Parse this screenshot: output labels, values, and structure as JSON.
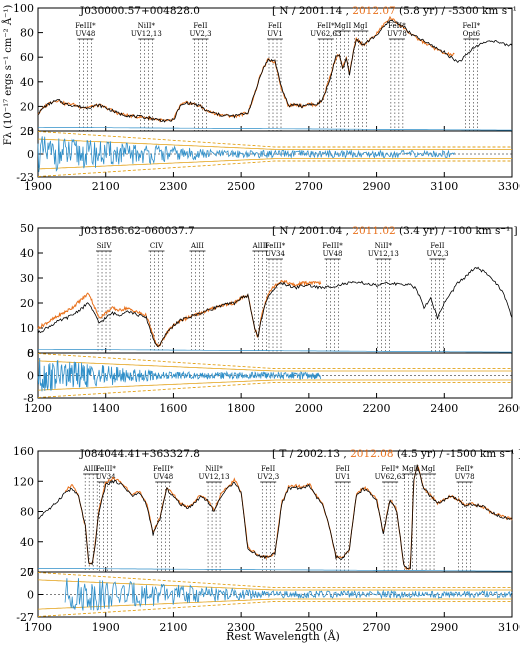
{
  "figure": {
    "xlabel": "Rest Wavelength (Å)",
    "ylabel_main": "Fλ (10⁻¹⁷ ergs s⁻¹ cm⁻² Å⁻¹)",
    "colors": {
      "early": "#000000",
      "late": "#e8711c",
      "residual": "#2f8fc9",
      "envelope": "#e3a21a",
      "axis": "#000000"
    }
  },
  "chart_data": [
    {
      "type": "line",
      "object": "J030000.57+004828.0",
      "header": {
        "prefix": "[ N / 2001.14 ,",
        "late_epoch": "2012.07",
        "suffix": "(5.8 yr) / -5300 km s⁻¹ ]"
      },
      "xlim": [
        1900,
        3300
      ],
      "ylim": [
        0,
        100
      ],
      "xticks": [
        1900,
        2100,
        2300,
        2500,
        2700,
        2900,
        3100,
        3300
      ],
      "yticks": [
        0,
        20,
        40,
        60,
        80,
        100
      ],
      "resid_lim": [
        -23,
        23
      ],
      "resid_ticks": [
        -23,
        0,
        23
      ],
      "late_range": [
        1900,
        3130
      ],
      "lines": [
        {
          "label": "FeIII* UV48",
          "x": [
            2040
          ]
        },
        {
          "label": "NiII* UV12,13",
          "x": [
            2220
          ]
        },
        {
          "label": "FeII UV2,3",
          "x": [
            2380
          ]
        },
        {
          "label": "FeII UV1",
          "x": [
            2600
          ]
        },
        {
          "label": "FeII* UV62,63",
          "x": [
            2750
          ]
        },
        {
          "label": "MgII",
          "x": [
            2800
          ]
        },
        {
          "label": "MgI",
          "x": [
            2852
          ]
        },
        {
          "label": "FeII* UV78",
          "x": [
            2960
          ]
        },
        {
          "label": "FeII* Opt6",
          "x": [
            3180
          ]
        }
      ],
      "series": [
        {
          "name": "2001.14",
          "x": [
            1900,
            1920,
            1940,
            1960,
            1980,
            2000,
            2020,
            2040,
            2060,
            2080,
            2100,
            2140,
            2180,
            2220,
            2260,
            2280,
            2300,
            2320,
            2340,
            2360,
            2380,
            2400,
            2440,
            2480,
            2520,
            2540,
            2560,
            2580,
            2600,
            2620,
            2640,
            2660,
            2680,
            2700,
            2720,
            2740,
            2760,
            2780,
            2790,
            2800,
            2810,
            2820,
            2830,
            2840,
            2860,
            2880,
            2900,
            2920,
            2940,
            2960,
            2980,
            3000,
            3020,
            3040,
            3060,
            3080,
            3100,
            3120,
            3140,
            3160,
            3180,
            3200,
            3220,
            3240,
            3260,
            3280,
            3300
          ],
          "y": [
            14,
            20,
            23,
            25,
            22,
            21,
            20,
            19,
            20,
            21,
            19,
            14,
            12,
            11,
            9,
            8,
            9,
            20,
            23,
            22,
            20,
            16,
            13,
            12,
            15,
            30,
            48,
            58,
            57,
            35,
            20,
            22,
            20,
            22,
            21,
            25,
            40,
            60,
            62,
            50,
            60,
            45,
            62,
            75,
            70,
            74,
            78,
            84,
            90,
            88,
            85,
            79,
            76,
            73,
            70,
            67,
            64,
            60,
            56,
            60,
            66,
            70,
            72,
            74,
            72,
            70,
            70
          ]
        },
        {
          "name": "2012.07",
          "x": [
            1900,
            1920,
            1940,
            1960,
            1980,
            2000,
            2020,
            2040,
            2060,
            2080,
            2100,
            2140,
            2180,
            2220,
            2260,
            2280,
            2300,
            2320,
            2340,
            2360,
            2380,
            2400,
            2440,
            2480,
            2520,
            2540,
            2560,
            2580,
            2600,
            2620,
            2640,
            2660,
            2680,
            2700,
            2720,
            2740,
            2760,
            2780,
            2790,
            2800,
            2810,
            2820,
            2830,
            2840,
            2860,
            2880,
            2900,
            2920,
            2940,
            2960,
            2980,
            3000,
            3020,
            3040,
            3060,
            3080,
            3100,
            3120,
            3130
          ],
          "y": [
            14,
            20,
            24,
            25,
            22,
            22,
            20,
            19,
            20,
            21,
            19,
            14,
            12,
            11,
            9,
            8,
            9,
            21,
            23,
            22,
            20,
            16,
            13,
            12,
            15,
            30,
            48,
            58,
            56,
            34,
            20,
            22,
            20,
            22,
            21,
            25,
            42,
            60,
            62,
            51,
            60,
            46,
            62,
            75,
            70,
            74,
            79,
            86,
            92,
            88,
            84,
            79,
            75,
            72,
            69,
            66,
            63,
            62,
            62
          ]
        }
      ]
    },
    {
      "type": "line",
      "object": "J031856.62-060037.7",
      "header": {
        "prefix": "[ N / 2001.04 ,",
        "late_epoch": "2011.02",
        "suffix": "(3.4 yr) / -100 km s⁻¹ ]"
      },
      "xlim": [
        1200,
        2600
      ],
      "ylim": [
        0,
        50
      ],
      "xticks": [
        1200,
        1400,
        1600,
        1800,
        2000,
        2200,
        2400,
        2600
      ],
      "yticks": [
        0,
        10,
        20,
        30,
        40,
        50
      ],
      "resid_lim": [
        -8,
        8
      ],
      "resid_ticks": [
        -8,
        0,
        8
      ],
      "late_range": [
        1200,
        2035
      ],
      "lines": [
        {
          "label": "SiIV",
          "x": [
            1395
          ]
        },
        {
          "label": "CIV",
          "x": [
            1550
          ]
        },
        {
          "label": "AlII",
          "x": [
            1671
          ]
        },
        {
          "label": "AlIII",
          "x": [
            1857
          ]
        },
        {
          "label": "FeIII* UV34",
          "x": [
            1900
          ]
        },
        {
          "label": "FeIII* UV48",
          "x": [
            2070
          ]
        },
        {
          "label": "NiII* UV12,13",
          "x": [
            2220
          ]
        },
        {
          "label": "FeII UV2,3",
          "x": [
            2380
          ]
        }
      ],
      "series": [
        {
          "name": "2001.04",
          "x": [
            1200,
            1250,
            1300,
            1350,
            1380,
            1400,
            1420,
            1440,
            1460,
            1480,
            1500,
            1520,
            1540,
            1550,
            1560,
            1580,
            1600,
            1620,
            1660,
            1700,
            1740,
            1780,
            1800,
            1820,
            1840,
            1850,
            1860,
            1880,
            1900,
            1920,
            1940,
            1960,
            1980,
            2000,
            2040,
            2080,
            2120,
            2160,
            2200,
            2240,
            2280,
            2300,
            2320,
            2340,
            2360,
            2380,
            2400,
            2420,
            2440,
            2460,
            2480,
            2500,
            2520,
            2540,
            2560,
            2580,
            2600
          ],
          "y": [
            8,
            12,
            15,
            20,
            12,
            14,
            16,
            15,
            17,
            16,
            15,
            14,
            6,
            3,
            3,
            8,
            11,
            13,
            15,
            17,
            19,
            20,
            22,
            23,
            10,
            6,
            14,
            23,
            26,
            28,
            27,
            26,
            27,
            27,
            26,
            27,
            28,
            28,
            27,
            28,
            27,
            28,
            25,
            18,
            22,
            14,
            20,
            24,
            28,
            30,
            33,
            34,
            32,
            30,
            27,
            22,
            14
          ]
        },
        {
          "name": "2011.02",
          "x": [
            1200,
            1250,
            1300,
            1350,
            1380,
            1400,
            1420,
            1440,
            1460,
            1480,
            1500,
            1520,
            1540,
            1550,
            1560,
            1580,
            1600,
            1620,
            1660,
            1700,
            1740,
            1780,
            1800,
            1820,
            1840,
            1850,
            1860,
            1880,
            1900,
            1920,
            1940,
            1960,
            1980,
            2000,
            2035
          ],
          "y": [
            10,
            14,
            18,
            24,
            14,
            16,
            18,
            17,
            18,
            17,
            16,
            15,
            7,
            3,
            3,
            8,
            11,
            13,
            15,
            17,
            19,
            20,
            22,
            23,
            10,
            6,
            15,
            24,
            27,
            29,
            28,
            27,
            28,
            28,
            28
          ]
        }
      ]
    },
    {
      "type": "line",
      "object": "J084044.41+363327.8",
      "header": {
        "prefix": "[ T / 2002.13 ,",
        "late_epoch": "2012.08",
        "suffix": "(4.5 yr) / -1500 km s⁻¹ ]"
      },
      "xlim": [
        1700,
        3100
      ],
      "ylim": [
        0,
        160
      ],
      "xticks": [
        1700,
        1900,
        2100,
        2300,
        2500,
        2700,
        2900,
        3100
      ],
      "yticks": [
        0,
        40,
        80,
        120,
        160
      ],
      "resid_lim": [
        -27,
        27
      ],
      "resid_ticks": [
        -27,
        0,
        27
      ],
      "late_range": [
        1780,
        3100
      ],
      "lines": [
        {
          "label": "AlIII",
          "x": [
            1857
          ]
        },
        {
          "label": "FeIII* UV34",
          "x": [
            1900
          ]
        },
        {
          "label": "FeIII* UV48",
          "x": [
            2070
          ]
        },
        {
          "label": "NiII* UV12,13",
          "x": [
            2220
          ]
        },
        {
          "label": "FeII UV2,3",
          "x": [
            2380
          ]
        },
        {
          "label": "FeII UV1",
          "x": [
            2600
          ]
        },
        {
          "label": "FeII* UV62,63",
          "x": [
            2740
          ]
        },
        {
          "label": "MgII",
          "x": [
            2800
          ]
        },
        {
          "label": "MgI",
          "x": [
            2852
          ]
        },
        {
          "label": "FeII* UV78",
          "x": [
            2960
          ]
        }
      ],
      "series": [
        {
          "name": "2002.13",
          "x": [
            1700,
            1720,
            1740,
            1760,
            1780,
            1800,
            1820,
            1840,
            1850,
            1860,
            1870,
            1880,
            1900,
            1920,
            1940,
            1960,
            1980,
            2000,
            2020,
            2040,
            2060,
            2080,
            2100,
            2120,
            2140,
            2160,
            2180,
            2200,
            2220,
            2240,
            2260,
            2280,
            2300,
            2320,
            2340,
            2360,
            2380,
            2400,
            2420,
            2440,
            2460,
            2480,
            2500,
            2520,
            2540,
            2560,
            2580,
            2600,
            2620,
            2640,
            2660,
            2680,
            2700,
            2720,
            2740,
            2760,
            2780,
            2790,
            2800,
            2810,
            2820,
            2840,
            2860,
            2880,
            2900,
            2920,
            2940,
            2960,
            2980,
            3000,
            3020,
            3040,
            3060,
            3080,
            3100
          ],
          "y": [
            70,
            80,
            85,
            95,
            105,
            110,
            100,
            60,
            10,
            10,
            40,
            80,
            115,
            120,
            118,
            110,
            100,
            105,
            90,
            50,
            70,
            110,
            100,
            90,
            85,
            90,
            100,
            95,
            80,
            100,
            110,
            120,
            105,
            30,
            25,
            20,
            20,
            25,
            90,
            110,
            112,
            110,
            115,
            100,
            90,
            60,
            20,
            18,
            30,
            100,
            110,
            105,
            95,
            50,
            95,
            80,
            10,
            5,
            5,
            120,
            140,
            110,
            100,
            90,
            95,
            100,
            95,
            88,
            90,
            88,
            85,
            78,
            75,
            72,
            70
          ]
        },
        {
          "name": "2012.08",
          "x": [
            1780,
            1800,
            1820,
            1840,
            1850,
            1860,
            1870,
            1880,
            1900,
            1920,
            1940,
            1960,
            1980,
            2000,
            2020,
            2040,
            2060,
            2080,
            2100,
            2120,
            2140,
            2160,
            2180,
            2200,
            2220,
            2240,
            2260,
            2280,
            2300,
            2320,
            2340,
            2360,
            2380,
            2400,
            2420,
            2440,
            2460,
            2480,
            2500,
            2520,
            2540,
            2560,
            2580,
            2600,
            2620,
            2640,
            2660,
            2680,
            2700,
            2720,
            2740,
            2760,
            2780,
            2790,
            2800,
            2810,
            2820,
            2840,
            2860,
            2880,
            2900,
            2920,
            2940,
            2960,
            2980,
            3000,
            3020,
            3040,
            3060,
            3080,
            3100
          ],
          "y": [
            108,
            115,
            100,
            60,
            10,
            10,
            40,
            82,
            118,
            124,
            120,
            112,
            102,
            106,
            92,
            52,
            72,
            112,
            102,
            92,
            86,
            92,
            102,
            96,
            82,
            102,
            112,
            122,
            107,
            32,
            26,
            20,
            20,
            26,
            92,
            112,
            114,
            112,
            117,
            102,
            91,
            60,
            20,
            18,
            31,
            102,
            112,
            107,
            96,
            51,
            96,
            81,
            10,
            5,
            5,
            122,
            142,
            111,
            101,
            91,
            96,
            101,
            96,
            89,
            90,
            88,
            85,
            78,
            75,
            72,
            70
          ]
        }
      ]
    }
  ]
}
